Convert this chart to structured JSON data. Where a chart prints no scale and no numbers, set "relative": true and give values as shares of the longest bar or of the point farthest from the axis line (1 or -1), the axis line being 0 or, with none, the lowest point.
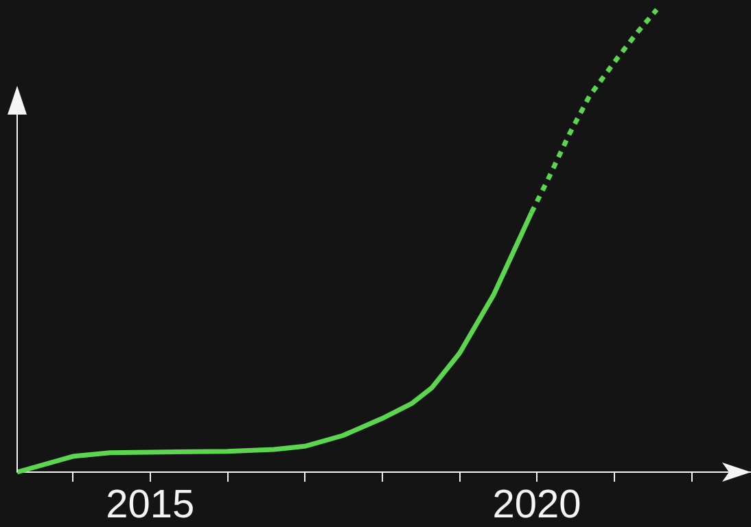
{
  "chart_data": {
    "type": "line",
    "relative": true,
    "xlim": [
      2013.28,
      2022.76
    ],
    "xticks": [
      {
        "value": 2014,
        "label": null
      },
      2015,
      {
        "value": 2016,
        "label": null
      },
      {
        "value": 2017,
        "label": null
      },
      {
        "value": 2018,
        "label": null
      },
      {
        "value": 2019,
        "label": null
      },
      2020,
      {
        "value": 2021,
        "label": null
      },
      {
        "value": 2022,
        "label": null
      }
    ],
    "tick_labels": "x",
    "grid": false,
    "series": [
      {
        "color": "#5cd64f",
        "line_style": "solid",
        "x": [
          2013.28,
          2014.0,
          2014.48,
          2015,
          2016,
          2016.6,
          2017.0,
          2017.49,
          2018.0,
          2018.38,
          2018.64,
          2019.0,
          2019.44,
          2019.93
        ],
        "values": [
          0,
          0.034,
          0.042,
          0.043,
          0.045,
          0.049,
          0.056,
          0.079,
          0.116,
          0.148,
          0.182,
          0.257,
          0.383,
          0.561
        ]
      },
      {
        "color": "#5cd64f",
        "line_style": "dashed",
        "x": [
          2019.93,
          2020.15,
          2020.42,
          2020.68,
          2021.04,
          2021.3,
          2021.55
        ],
        "values": [
          0.561,
          0.635,
          0.731,
          0.813,
          0.895,
          0.951,
          1
        ]
      }
    ]
  }
}
